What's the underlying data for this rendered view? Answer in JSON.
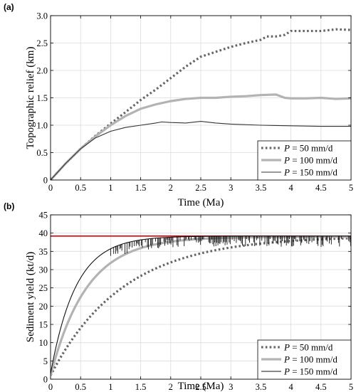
{
  "chart_data": [
    {
      "panel_label": "(a)",
      "type": "line",
      "xlabel": "Time (Ma)",
      "ylabel": "Topographic relief (km)",
      "xlim": [
        0,
        5
      ],
      "ylim": [
        0,
        3
      ],
      "xticks": [
        "0",
        "0.5",
        "1",
        "1.5",
        "2",
        "2.5",
        "3",
        "3.5",
        "4",
        "4.5",
        "5"
      ],
      "yticks": [
        "0",
        "0.5",
        "1.0",
        "1.5",
        "2.0",
        "2.5",
        "3.0"
      ],
      "grid": true,
      "legend_position": "bottom-right",
      "series": [
        {
          "name_var": "P",
          "name_rest": " = 50 mm/d",
          "color": "#666666",
          "style": "dotted",
          "points": [
            [
              0,
              0
            ],
            [
              0.25,
              0.3
            ],
            [
              0.5,
              0.57
            ],
            [
              0.75,
              0.81
            ],
            [
              1,
              1.03
            ],
            [
              1.25,
              1.24
            ],
            [
              1.5,
              1.46
            ],
            [
              1.75,
              1.65
            ],
            [
              2,
              1.86
            ],
            [
              2.25,
              2.07
            ],
            [
              2.5,
              2.25
            ],
            [
              2.75,
              2.34
            ],
            [
              3,
              2.43
            ],
            [
              3.25,
              2.5
            ],
            [
              3.5,
              2.56
            ],
            [
              3.6,
              2.62
            ],
            [
              3.75,
              2.62
            ],
            [
              3.9,
              2.65
            ],
            [
              4,
              2.72
            ],
            [
              4.25,
              2.72
            ],
            [
              4.5,
              2.72
            ],
            [
              4.75,
              2.75
            ],
            [
              5,
              2.74
            ]
          ]
        },
        {
          "name_var": "P",
          "name_rest": " = 100 mm/d",
          "color": "#b3b3b3",
          "style": "thick",
          "points": [
            [
              0,
              0
            ],
            [
              0.25,
              0.3
            ],
            [
              0.5,
              0.57
            ],
            [
              0.75,
              0.8
            ],
            [
              1,
              1.0
            ],
            [
              1.25,
              1.17
            ],
            [
              1.5,
              1.3
            ],
            [
              1.75,
              1.38
            ],
            [
              2,
              1.44
            ],
            [
              2.25,
              1.48
            ],
            [
              2.5,
              1.5
            ],
            [
              2.75,
              1.5
            ],
            [
              3,
              1.52
            ],
            [
              3.25,
              1.53
            ],
            [
              3.5,
              1.55
            ],
            [
              3.75,
              1.56
            ],
            [
              3.9,
              1.5
            ],
            [
              4,
              1.49
            ],
            [
              4.25,
              1.49
            ],
            [
              4.5,
              1.5
            ],
            [
              4.75,
              1.48
            ],
            [
              5,
              1.49
            ]
          ]
        },
        {
          "name_var": "P",
          "name_rest": " = 150 mm/d",
          "color": "#333333",
          "style": "thin",
          "points": [
            [
              0,
              0
            ],
            [
              0.25,
              0.3
            ],
            [
              0.5,
              0.57
            ],
            [
              0.75,
              0.77
            ],
            [
              1,
              0.89
            ],
            [
              1.25,
              0.96
            ],
            [
              1.5,
              1.0
            ],
            [
              1.75,
              1.04
            ],
            [
              1.85,
              1.06
            ],
            [
              2,
              1.05
            ],
            [
              2.25,
              1.04
            ],
            [
              2.5,
              1.07
            ],
            [
              2.75,
              1.04
            ],
            [
              3,
              1.02
            ],
            [
              3.5,
              1.0
            ],
            [
              4,
              0.99
            ],
            [
              4.5,
              0.98
            ],
            [
              5,
              0.98
            ]
          ]
        }
      ]
    },
    {
      "panel_label": "(b)",
      "type": "line",
      "xlabel": "Time (Ma)",
      "ylabel": "Sediment yield (kt/d)",
      "xlim": [
        0,
        5
      ],
      "ylim": [
        0,
        45
      ],
      "xticks": [
        "0",
        "0.5",
        "1",
        "1.5",
        "2",
        "2.5",
        "3",
        "3.5",
        "4",
        "4.5",
        "5"
      ],
      "yticks": [
        "0",
        "5",
        "10",
        "15",
        "20",
        "25",
        "30",
        "35",
        "40",
        "45"
      ],
      "grid": true,
      "legend_position": "bottom-right",
      "reference_line": {
        "y": 39.2,
        "color": "#e00000"
      },
      "series": [
        {
          "name_var": "P",
          "name_rest": " = 50 mm/d",
          "color": "#666666",
          "style": "dotted",
          "tau": 1.2,
          "y0": 1.0,
          "y_inf": 39.2
        },
        {
          "name_var": "P",
          "name_rest": " = 100 mm/d",
          "color": "#b3b3b3",
          "style": "thick",
          "tau": 0.6,
          "y0": 1.0,
          "y_inf": 39.0
        },
        {
          "name_var": "P",
          "name_rest": " = 150 mm/d",
          "color": "#111111",
          "style": "thin",
          "tau": 0.42,
          "y0": 1.5,
          "y_inf": 39.2,
          "noisy": true
        }
      ]
    }
  ]
}
